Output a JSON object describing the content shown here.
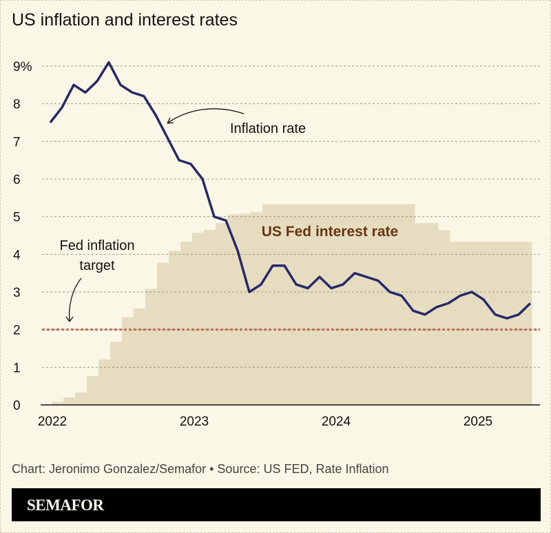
{
  "title": "US inflation and interest rates",
  "credit": "Chart: Jeronimo Gonzalez/Semafor • Source: US FED, Rate Inflation",
  "brand": "SEMAFOR",
  "chart_data": {
    "type": "line",
    "title": "US inflation and interest rates",
    "x_ticks": [
      "2022",
      "2023",
      "2024",
      "2025"
    ],
    "y_ticks": [
      "0",
      "1",
      "2",
      "3",
      "4",
      "5",
      "6",
      "7",
      "8",
      "9%"
    ],
    "ylim": [
      0,
      9
    ],
    "grid": true,
    "colors": {
      "inflation": "#25296a",
      "fed_rate": "#e6dcbf",
      "target": "#c8685a",
      "fed_label": "#6b3410"
    },
    "series": [
      {
        "name": "Inflation rate",
        "type": "line",
        "x": [
          "2022-01",
          "2022-02",
          "2022-03",
          "2022-04",
          "2022-05",
          "2022-06",
          "2022-07",
          "2022-08",
          "2022-09",
          "2022-10",
          "2022-11",
          "2022-12",
          "2023-01",
          "2023-02",
          "2023-03",
          "2023-04",
          "2023-05",
          "2023-06",
          "2023-07",
          "2023-08",
          "2023-09",
          "2023-10",
          "2023-11",
          "2023-12",
          "2024-01",
          "2024-02",
          "2024-03",
          "2024-04",
          "2024-05",
          "2024-06",
          "2024-07",
          "2024-08",
          "2024-09",
          "2024-10",
          "2024-11",
          "2024-12",
          "2025-01",
          "2025-02",
          "2025-03",
          "2025-04",
          "2025-05",
          "2025-06"
        ],
        "values": [
          7.5,
          7.9,
          8.5,
          8.3,
          8.6,
          9.1,
          8.5,
          8.3,
          8.2,
          7.7,
          7.1,
          6.5,
          6.4,
          6.0,
          5.0,
          4.9,
          4.1,
          3.0,
          3.2,
          3.7,
          3.7,
          3.2,
          3.1,
          3.4,
          3.1,
          3.2,
          3.5,
          3.4,
          3.3,
          3.0,
          2.9,
          2.5,
          2.4,
          2.6,
          2.7,
          2.9,
          3.0,
          2.8,
          2.4,
          2.3,
          2.4,
          2.7
        ]
      },
      {
        "name": "US Fed interest rate",
        "type": "step-area",
        "values": [
          0.08,
          0.2,
          0.33,
          0.77,
          1.21,
          1.68,
          2.33,
          2.56,
          3.08,
          3.78,
          4.1,
          4.33,
          4.57,
          4.65,
          4.83,
          5.06,
          5.08,
          5.12,
          5.33,
          5.33,
          5.33,
          5.33,
          5.33,
          5.33,
          5.33,
          5.33,
          5.33,
          5.33,
          5.33,
          5.33,
          5.33,
          4.83,
          4.83,
          4.64,
          4.33,
          4.33,
          4.33,
          4.33,
          4.33,
          4.33,
          4.33
        ]
      }
    ],
    "reference_line": {
      "label": "Fed inflation target",
      "label_lines": [
        "Fed inflation",
        "target"
      ],
      "value": 2
    },
    "annotations": {
      "inflation": "Inflation rate",
      "fed_rate": "US Fed interest rate"
    }
  }
}
